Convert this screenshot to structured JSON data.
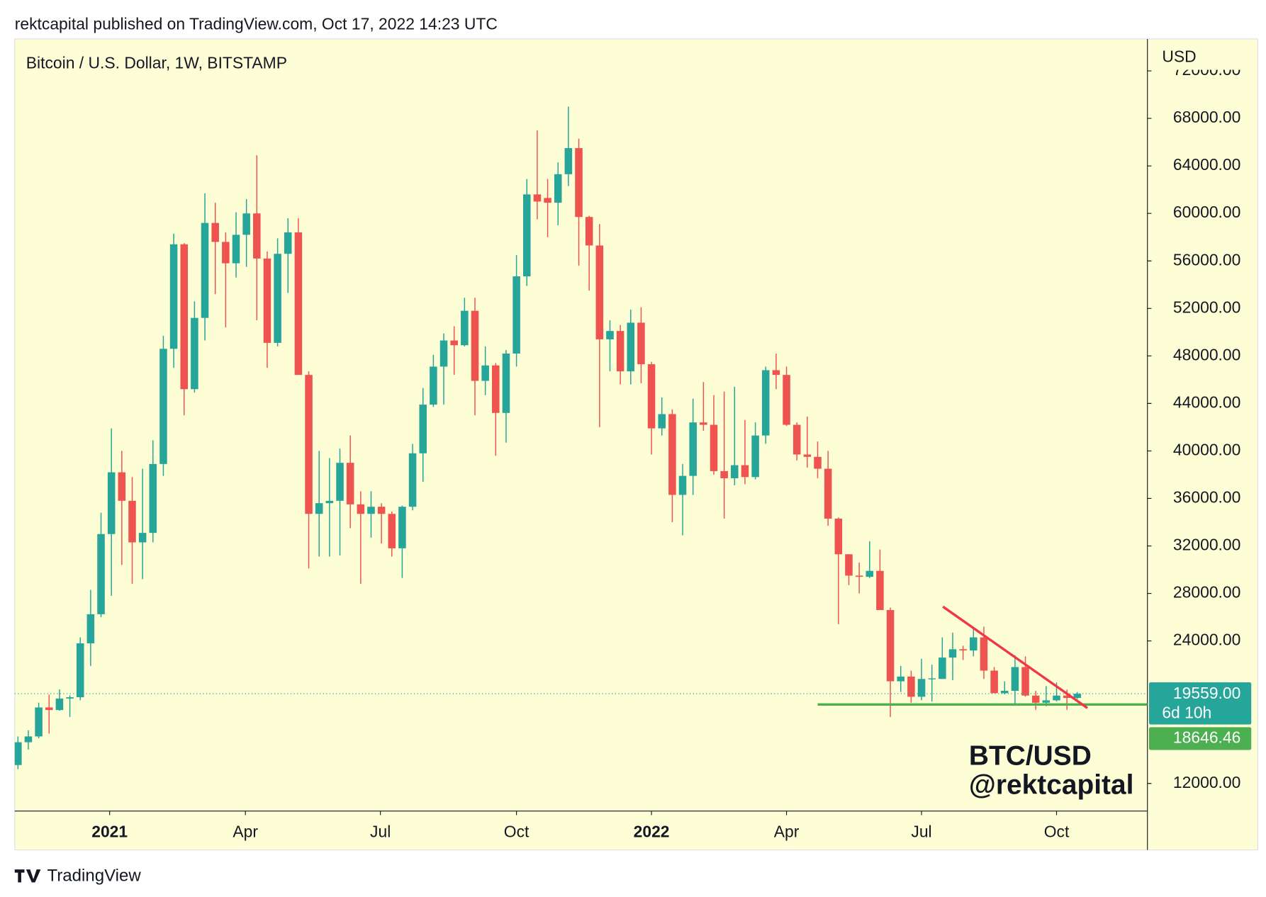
{
  "header": "rektcapital published on TradingView.com, Oct 17, 2022 14:23 UTC",
  "footer": "TradingView",
  "chart_data": {
    "type": "candlestick",
    "title": "Bitcoin / U.S. Dollar, 1W, BITSTAMP",
    "y_axis_label": "USD",
    "watermark": [
      "BTC/USD",
      "@rektcapital"
    ],
    "up_color": "#26a69a",
    "down_color": "#ef5350",
    "open": [
      13550,
      15470,
      15960,
      18400,
      18180,
      19150,
      19260,
      23800,
      26250,
      33000,
      38200,
      35800,
      32300,
      33100,
      38900,
      48600,
      57400,
      45200,
      51200,
      59200,
      57600,
      55800,
      58200,
      60000,
      56200,
      49100,
      56600,
      58400,
      46400,
      34700,
      35600,
      35800,
      39000,
      35500,
      34700,
      35300,
      34700,
      31800,
      35300,
      39800,
      43900,
      47100,
      49300,
      48900,
      51800,
      45900,
      47200,
      43200,
      48200,
      54700,
      61600,
      61300,
      60900,
      63300,
      65500,
      59700,
      57300,
      49400,
      50100,
      46700,
      50800,
      47300,
      41900,
      43100,
      36300,
      37900,
      42400,
      42200,
      38300,
      37700,
      38800,
      37800,
      41300,
      46800,
      46400,
      42200,
      39700,
      39500,
      38500,
      34300,
      31300,
      29500,
      29400,
      29900,
      26600,
      20600,
      21000,
      19300,
      20800,
      20800,
      22600,
      23300,
      23200,
      24300,
      21500,
      19600,
      19800,
      21800,
      19400,
      18800,
      19000,
      19400,
      19200
    ],
    "high": [
      15960,
      16480,
      18800,
      19480,
      19920,
      19420,
      24300,
      28300,
      34800,
      41900,
      40000,
      37800,
      38500,
      40900,
      49700,
      58300,
      57500,
      52600,
      61700,
      60900,
      58400,
      60100,
      61200,
      64900,
      56800,
      57900,
      59600,
      59600,
      46700,
      40000,
      39400,
      40200,
      41300,
      36600,
      36600,
      35600,
      34900,
      35400,
      40600,
      45300,
      48100,
      49900,
      50500,
      52900,
      52900,
      48800,
      47400,
      48500,
      56500,
      62900,
      67000,
      62900,
      64300,
      69000,
      66300,
      59800,
      59100,
      51000,
      50600,
      51900,
      52100,
      47500,
      44500,
      43500,
      38900,
      44400,
      45800,
      44700,
      45000,
      45400,
      42600,
      42400,
      47100,
      48200,
      47100,
      42400,
      42900,
      40800,
      40000,
      34400,
      31300,
      30600,
      32400,
      31700,
      26800,
      21900,
      21500,
      22500,
      22000,
      24300,
      24700,
      23600,
      25200,
      25200,
      21800,
      20600,
      22800,
      22700,
      19800,
      20200,
      20500,
      19900,
      19700
    ],
    "low": [
      13200,
      14850,
      15800,
      16200,
      18130,
      17600,
      19000,
      21900,
      26000,
      27800,
      30400,
      28800,
      29200,
      32300,
      37900,
      47000,
      43000,
      44900,
      49300,
      53200,
      50400,
      54600,
      55500,
      51000,
      47000,
      48800,
      53300,
      46500,
      30100,
      31100,
      31100,
      31200,
      33500,
      28800,
      32700,
      32200,
      31100,
      29300,
      35000,
      37400,
      43700,
      43900,
      46400,
      48800,
      43000,
      44700,
      39600,
      40700,
      47100,
      53900,
      59500,
      58000,
      59000,
      62300,
      55600,
      53500,
      42000,
      46700,
      45600,
      45600,
      45700,
      39700,
      41300,
      34000,
      32900,
      36300,
      41700,
      38000,
      34300,
      37100,
      37200,
      37600,
      40600,
      45200,
      42100,
      39200,
      38600,
      37700,
      33700,
      25400,
      28700,
      28000,
      29300,
      26600,
      17600,
      19700,
      18800,
      19000,
      18900,
      20800,
      20700,
      22400,
      22700,
      20800,
      19600,
      19500,
      18600,
      19300,
      18200,
      18500,
      18900,
      18200,
      19100
    ],
    "close": [
      15470,
      15960,
      18400,
      18180,
      19150,
      19260,
      23800,
      26250,
      33000,
      38200,
      35800,
      32300,
      33100,
      38900,
      48600,
      57400,
      45200,
      51200,
      59200,
      57600,
      55800,
      58200,
      60000,
      56200,
      49100,
      56600,
      58400,
      46400,
      34700,
      35600,
      35800,
      39000,
      35500,
      34700,
      35300,
      34700,
      31800,
      35300,
      39800,
      43900,
      47100,
      49300,
      48900,
      51800,
      45900,
      47200,
      43200,
      48200,
      54700,
      61600,
      61000,
      60900,
      63300,
      65500,
      59700,
      57300,
      49400,
      50100,
      46700,
      50800,
      47300,
      41900,
      43100,
      36300,
      37900,
      42400,
      42200,
      38300,
      37700,
      38800,
      37800,
      41300,
      46800,
      46400,
      42200,
      39700,
      39500,
      38500,
      34300,
      31300,
      29500,
      29400,
      29900,
      26600,
      20600,
      21000,
      19300,
      20800,
      20850,
      22600,
      23300,
      23200,
      24300,
      21500,
      19600,
      19800,
      21800,
      19400,
      18800,
      19000,
      19400,
      19200,
      19559
    ],
    "xlim": [
      -0.31,
      108.75
    ],
    "xticks": [
      {
        "value": 8.83,
        "label": "2021"
      },
      {
        "value": 21.9,
        "label": "Apr"
      },
      {
        "value": 34.9,
        "label": "Jul"
      },
      {
        "value": 48.0,
        "label": "Oct"
      },
      {
        "value": 61.0,
        "label": "2022"
      },
      {
        "value": 74.0,
        "label": "Apr"
      },
      {
        "value": 87.0,
        "label": "Jul"
      },
      {
        "value": 100.0,
        "label": "Oct"
      }
    ],
    "ylim": [
      9678,
      74692
    ],
    "yticks": [
      {
        "value": 12000,
        "label": "12000.00"
      },
      {
        "value": 24000,
        "label": "24000.00"
      },
      {
        "value": 28000,
        "label": "28000.00"
      },
      {
        "value": 32000,
        "label": "32000.00"
      },
      {
        "value": 36000,
        "label": "36000.00"
      },
      {
        "value": 40000,
        "label": "40000.00"
      },
      {
        "value": 44000,
        "label": "44000.00"
      },
      {
        "value": 48000,
        "label": "48000.00"
      },
      {
        "value": 52000,
        "label": "52000.00"
      },
      {
        "value": 56000,
        "label": "56000.00"
      },
      {
        "value": 60000,
        "label": "60000.00"
      },
      {
        "value": 64000,
        "label": "64000.00"
      },
      {
        "value": 68000,
        "label": "68000.00"
      },
      {
        "value": 72000,
        "label": "72000.00"
      }
    ],
    "last_price": {
      "value": 19559,
      "value_label": "19559.00",
      "countdown": "6d 10h",
      "color": "#26a69a"
    },
    "support": {
      "value": 18646.46,
      "value_label": "18646.46",
      "x_start": 77.0,
      "color": "#4caf50"
    },
    "trendline": {
      "x": [
        89.06,
        102.97
      ],
      "y": [
        26888,
        18351
      ],
      "color": "#f23645"
    }
  }
}
